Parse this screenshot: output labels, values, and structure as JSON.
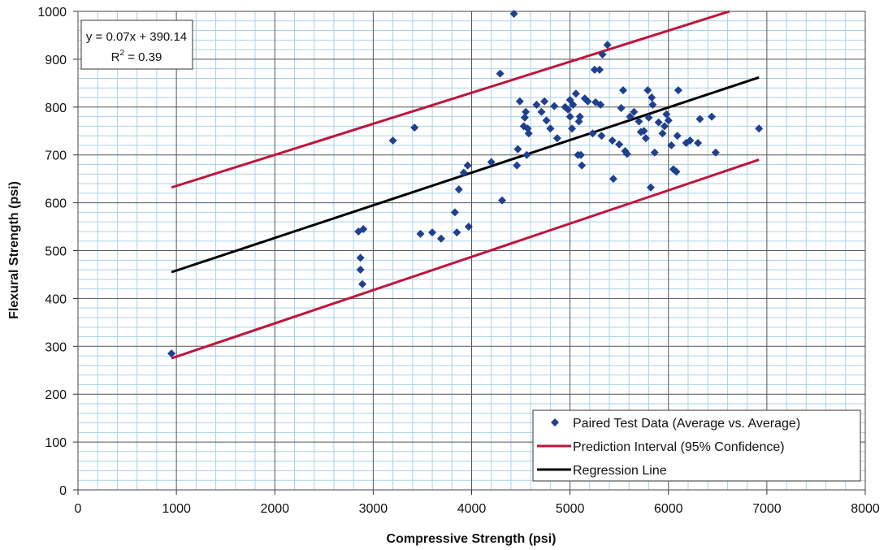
{
  "chart_data": {
    "type": "scatter",
    "xlabel": "Compressive Strength (psi)",
    "ylabel": "Flexural Strength (psi)",
    "xlim": [
      0,
      8000
    ],
    "ylim": [
      0,
      1000
    ],
    "x_ticks": [
      "0",
      "1000",
      "2000",
      "3000",
      "4000",
      "5000",
      "6000",
      "7000",
      "8000"
    ],
    "y_ticks": [
      "0",
      "100",
      "200",
      "300",
      "400",
      "500",
      "600",
      "700",
      "800",
      "900",
      "1000"
    ],
    "grid": true,
    "legend_position": "bottom-right",
    "annotation": {
      "equation": "y = 0.07x + 390.14",
      "r2_base": "R",
      "r2_sup": "2",
      "r2_value": " = 0.39"
    },
    "colors": {
      "points": "#1f3f8f",
      "prediction": "#c0143c",
      "regression": "#000000",
      "grid_major": "#555555",
      "grid_minor": "#a9d2e6"
    },
    "legend": [
      {
        "label": "Paired Test Data (Average vs. Average)",
        "kind": "marker"
      },
      {
        "label": "Prediction Interval (95% Confidence)",
        "kind": "prediction"
      },
      {
        "label": "Regression Line",
        "kind": "regression"
      }
    ],
    "series": [
      {
        "name": "Paired Test Data (Average vs. Average)",
        "kind": "scatter",
        "points": [
          [
            950,
            285
          ],
          [
            2850,
            540
          ],
          [
            2870,
            485
          ],
          [
            2870,
            460
          ],
          [
            2890,
            430
          ],
          [
            2900,
            545
          ],
          [
            3200,
            730
          ],
          [
            3420,
            757
          ],
          [
            3480,
            535
          ],
          [
            3600,
            538
          ],
          [
            3690,
            525
          ],
          [
            3830,
            580
          ],
          [
            3850,
            538
          ],
          [
            3870,
            628
          ],
          [
            3920,
            663
          ],
          [
            3960,
            678
          ],
          [
            3970,
            550
          ],
          [
            4200,
            685
          ],
          [
            4290,
            870
          ],
          [
            4310,
            605
          ],
          [
            4430,
            995
          ],
          [
            4470,
            712
          ],
          [
            4460,
            678
          ],
          [
            4490,
            812
          ],
          [
            4530,
            760
          ],
          [
            4540,
            778
          ],
          [
            4550,
            790
          ],
          [
            4560,
            700
          ],
          [
            4570,
            755
          ],
          [
            4580,
            745
          ],
          [
            4660,
            805
          ],
          [
            4710,
            790
          ],
          [
            4740,
            812
          ],
          [
            4760,
            772
          ],
          [
            4800,
            755
          ],
          [
            4840,
            802
          ],
          [
            4870,
            735
          ],
          [
            4950,
            800
          ],
          [
            4980,
            795
          ],
          [
            5000,
            815
          ],
          [
            5000,
            780
          ],
          [
            5020,
            755
          ],
          [
            5030,
            805
          ],
          [
            5060,
            828
          ],
          [
            5080,
            700
          ],
          [
            5090,
            770
          ],
          [
            5100,
            780
          ],
          [
            5110,
            700
          ],
          [
            5120,
            678
          ],
          [
            5150,
            818
          ],
          [
            5180,
            812
          ],
          [
            5230,
            745
          ],
          [
            5250,
            878
          ],
          [
            5260,
            810
          ],
          [
            5300,
            878
          ],
          [
            5310,
            805
          ],
          [
            5320,
            740
          ],
          [
            5330,
            910
          ],
          [
            5380,
            930
          ],
          [
            5430,
            730
          ],
          [
            5440,
            650
          ],
          [
            5500,
            722
          ],
          [
            5520,
            798
          ],
          [
            5540,
            835
          ],
          [
            5560,
            708
          ],
          [
            5580,
            702
          ],
          [
            5610,
            780
          ],
          [
            5650,
            790
          ],
          [
            5700,
            770
          ],
          [
            5720,
            748
          ],
          [
            5750,
            750
          ],
          [
            5770,
            735
          ],
          [
            5790,
            835
          ],
          [
            5800,
            778
          ],
          [
            5820,
            632
          ],
          [
            5830,
            820
          ],
          [
            5840,
            805
          ],
          [
            5860,
            705
          ],
          [
            5900,
            768
          ],
          [
            5940,
            745
          ],
          [
            5960,
            760
          ],
          [
            5980,
            785
          ],
          [
            6000,
            772
          ],
          [
            6030,
            720
          ],
          [
            6050,
            670
          ],
          [
            6080,
            665
          ],
          [
            6090,
            740
          ],
          [
            6100,
            835
          ],
          [
            6180,
            725
          ],
          [
            6220,
            730
          ],
          [
            6300,
            725
          ],
          [
            6320,
            775
          ],
          [
            6440,
            780
          ],
          [
            6480,
            705
          ],
          [
            6920,
            755
          ]
        ]
      },
      {
        "name": "Regression Line",
        "kind": "line",
        "color": "#000000",
        "points": [
          [
            950,
            455
          ],
          [
            6920,
            862
          ]
        ]
      },
      {
        "name": "Prediction Interval (95% Confidence)",
        "kind": "line",
        "color": "#c0143c",
        "points": [
          [
            950,
            632
          ],
          [
            6620,
            1000
          ]
        ]
      },
      {
        "name": "Prediction Interval (95% Confidence)",
        "kind": "line",
        "color": "#c0143c",
        "points": [
          [
            950,
            275
          ],
          [
            6920,
            690
          ]
        ]
      }
    ]
  }
}
